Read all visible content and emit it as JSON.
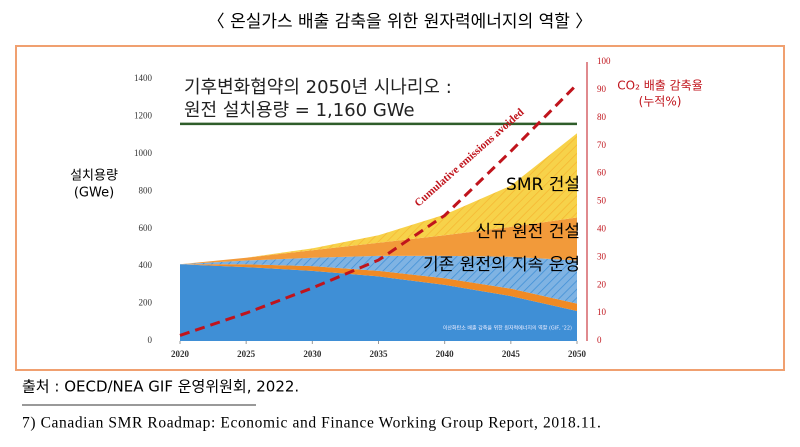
{
  "page_title": "〈 온실가스 배출 감축을 위한 원자력에너지의 역할 〉",
  "source": "출처 : OECD/NEA GIF 운영위원회, 2022.",
  "footnote": "7) Canadian SMR Roadmap: Economic and Finance Working Group Report, 2018.11.",
  "chart_data": {
    "type": "stacked-area",
    "title_lines": [
      "기후변화협약의 2050년 시나리오 :",
      "원전 설치용량 = 1,160 GWe"
    ],
    "ylabel_lines": [
      "설치용량",
      "(GWe)"
    ],
    "y2label_lines": [
      "CO₂ 배출 감축율",
      "(누적%)"
    ],
    "watermark": "이산화탄소 배출 감축을 위한 원자력에너지의 역할 (GIF, '22)",
    "x": [
      2020,
      2025,
      2030,
      2035,
      2040,
      2045,
      2050
    ],
    "xlim": [
      2020,
      2050
    ],
    "xticks": [
      2020,
      2025,
      2030,
      2035,
      2040,
      2045,
      2050
    ],
    "ylim": [
      0,
      1400
    ],
    "yticks": [
      0,
      200,
      400,
      600,
      800,
      1000,
      1200,
      1400
    ],
    "y2lim": [
      0,
      100
    ],
    "y2ticks": [
      0,
      10,
      20,
      30,
      40,
      50,
      60,
      70,
      80,
      90,
      100
    ],
    "series": [
      {
        "color": "#3f8fd6",
        "values": [
          410,
          395,
          375,
          345,
          300,
          240,
          160
        ]
      },
      {
        "color": "#f08a24",
        "values": [
          0,
          15,
          25,
          30,
          35,
          40,
          40
        ]
      },
      {
        "name": "기존 원전의 지속 운영",
        "color": "#7fb3e3",
        "hatched": true,
        "values": [
          0,
          20,
          45,
          80,
          120,
          170,
          230
        ]
      },
      {
        "name": "신규 원전 건설",
        "color": "#f29a3a",
        "values": [
          0,
          15,
          40,
          70,
          110,
          160,
          230
        ]
      },
      {
        "name": "SMR 건설",
        "color": "#f7d24a",
        "hatched": true,
        "values": [
          0,
          0,
          10,
          40,
          110,
          220,
          450
        ]
      },
      {
        "name": "Cumulative emissions avoided",
        "type": "line",
        "axis": "y2",
        "color": "#c0141c",
        "values": [
          2,
          10,
          19,
          29,
          45,
          68,
          92
        ]
      }
    ],
    "reference_line": {
      "value": 1160,
      "color": "#2f5d2a"
    }
  }
}
